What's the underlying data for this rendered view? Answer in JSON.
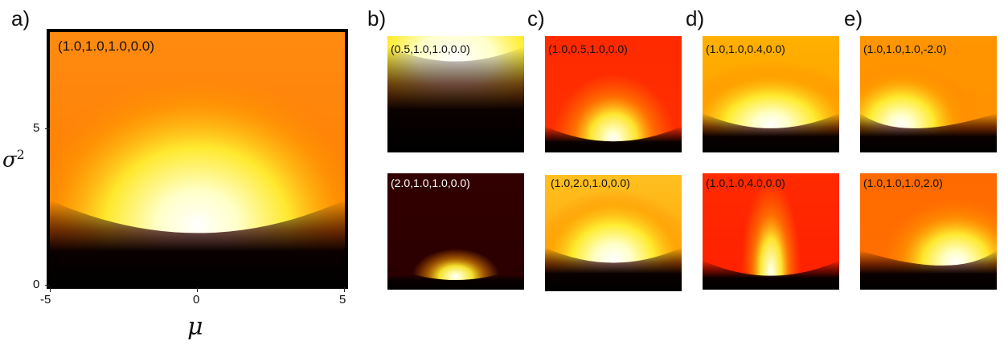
{
  "figure": {
    "panels": [
      "a)",
      "b)",
      "c)",
      "d)",
      "e)"
    ]
  },
  "chart_data": [
    {
      "type": "heatmap",
      "panel": "a)",
      "label": "(1.0,1.0,1.0,0.0)",
      "xlabel": "μ",
      "ylabel": "σ2",
      "x_ticks": [
        "-5",
        "0",
        "5"
      ],
      "y_ticks": [
        "0",
        "5"
      ],
      "xlim": [
        -5,
        5
      ],
      "ylim": [
        0,
        8
      ],
      "colormap": "hot",
      "peak": {
        "mu": 0.0,
        "sigma2": 1.9
      }
    },
    {
      "type": "heatmap",
      "panel": "b)",
      "row": "top",
      "label": "(0.5,1.0,1.0,0.0)",
      "colormap": "hot",
      "peak": {
        "mu": 0.0,
        "sigma2": 6.5
      }
    },
    {
      "type": "heatmap",
      "panel": "b)",
      "row": "bottom",
      "label": "(2.0,1.0,1.0,0.0)",
      "colormap": "hot",
      "peak": {
        "mu": 0.0,
        "sigma2": 0.9
      }
    },
    {
      "type": "heatmap",
      "panel": "c)",
      "row": "top",
      "label": "(1.0,0.5,1.0,0.0)",
      "colormap": "hot",
      "peak": {
        "mu": 0.0,
        "sigma2": 1.0
      }
    },
    {
      "type": "heatmap",
      "panel": "c)",
      "row": "bottom",
      "label": "(1.0,2.0,1.0,0.0)",
      "colormap": "hot",
      "peak": {
        "mu": 0.0,
        "sigma2": 2.2
      }
    },
    {
      "type": "heatmap",
      "panel": "d)",
      "row": "top",
      "label": "(1.0,1.0,0.4,0.0)",
      "colormap": "hot",
      "peak": {
        "mu": 0.0,
        "sigma2": 1.9
      }
    },
    {
      "type": "heatmap",
      "panel": "d)",
      "row": "bottom",
      "label": "(1.0,1.0,4.0,0.0)",
      "colormap": "hot",
      "peak": {
        "mu": 0.0,
        "sigma2": 1.2
      }
    },
    {
      "type": "heatmap",
      "panel": "e)",
      "row": "top",
      "label": "(1.0,1.0,1.0,-2.0)",
      "colormap": "hot",
      "peak": {
        "mu": -2.0,
        "sigma2": 1.9
      }
    },
    {
      "type": "heatmap",
      "panel": "e)",
      "row": "bottom",
      "label": "(1.0,1.0,1.0,2.0)",
      "colormap": "hot",
      "peak": {
        "mu": 2.0,
        "sigma2": 1.9
      }
    }
  ]
}
